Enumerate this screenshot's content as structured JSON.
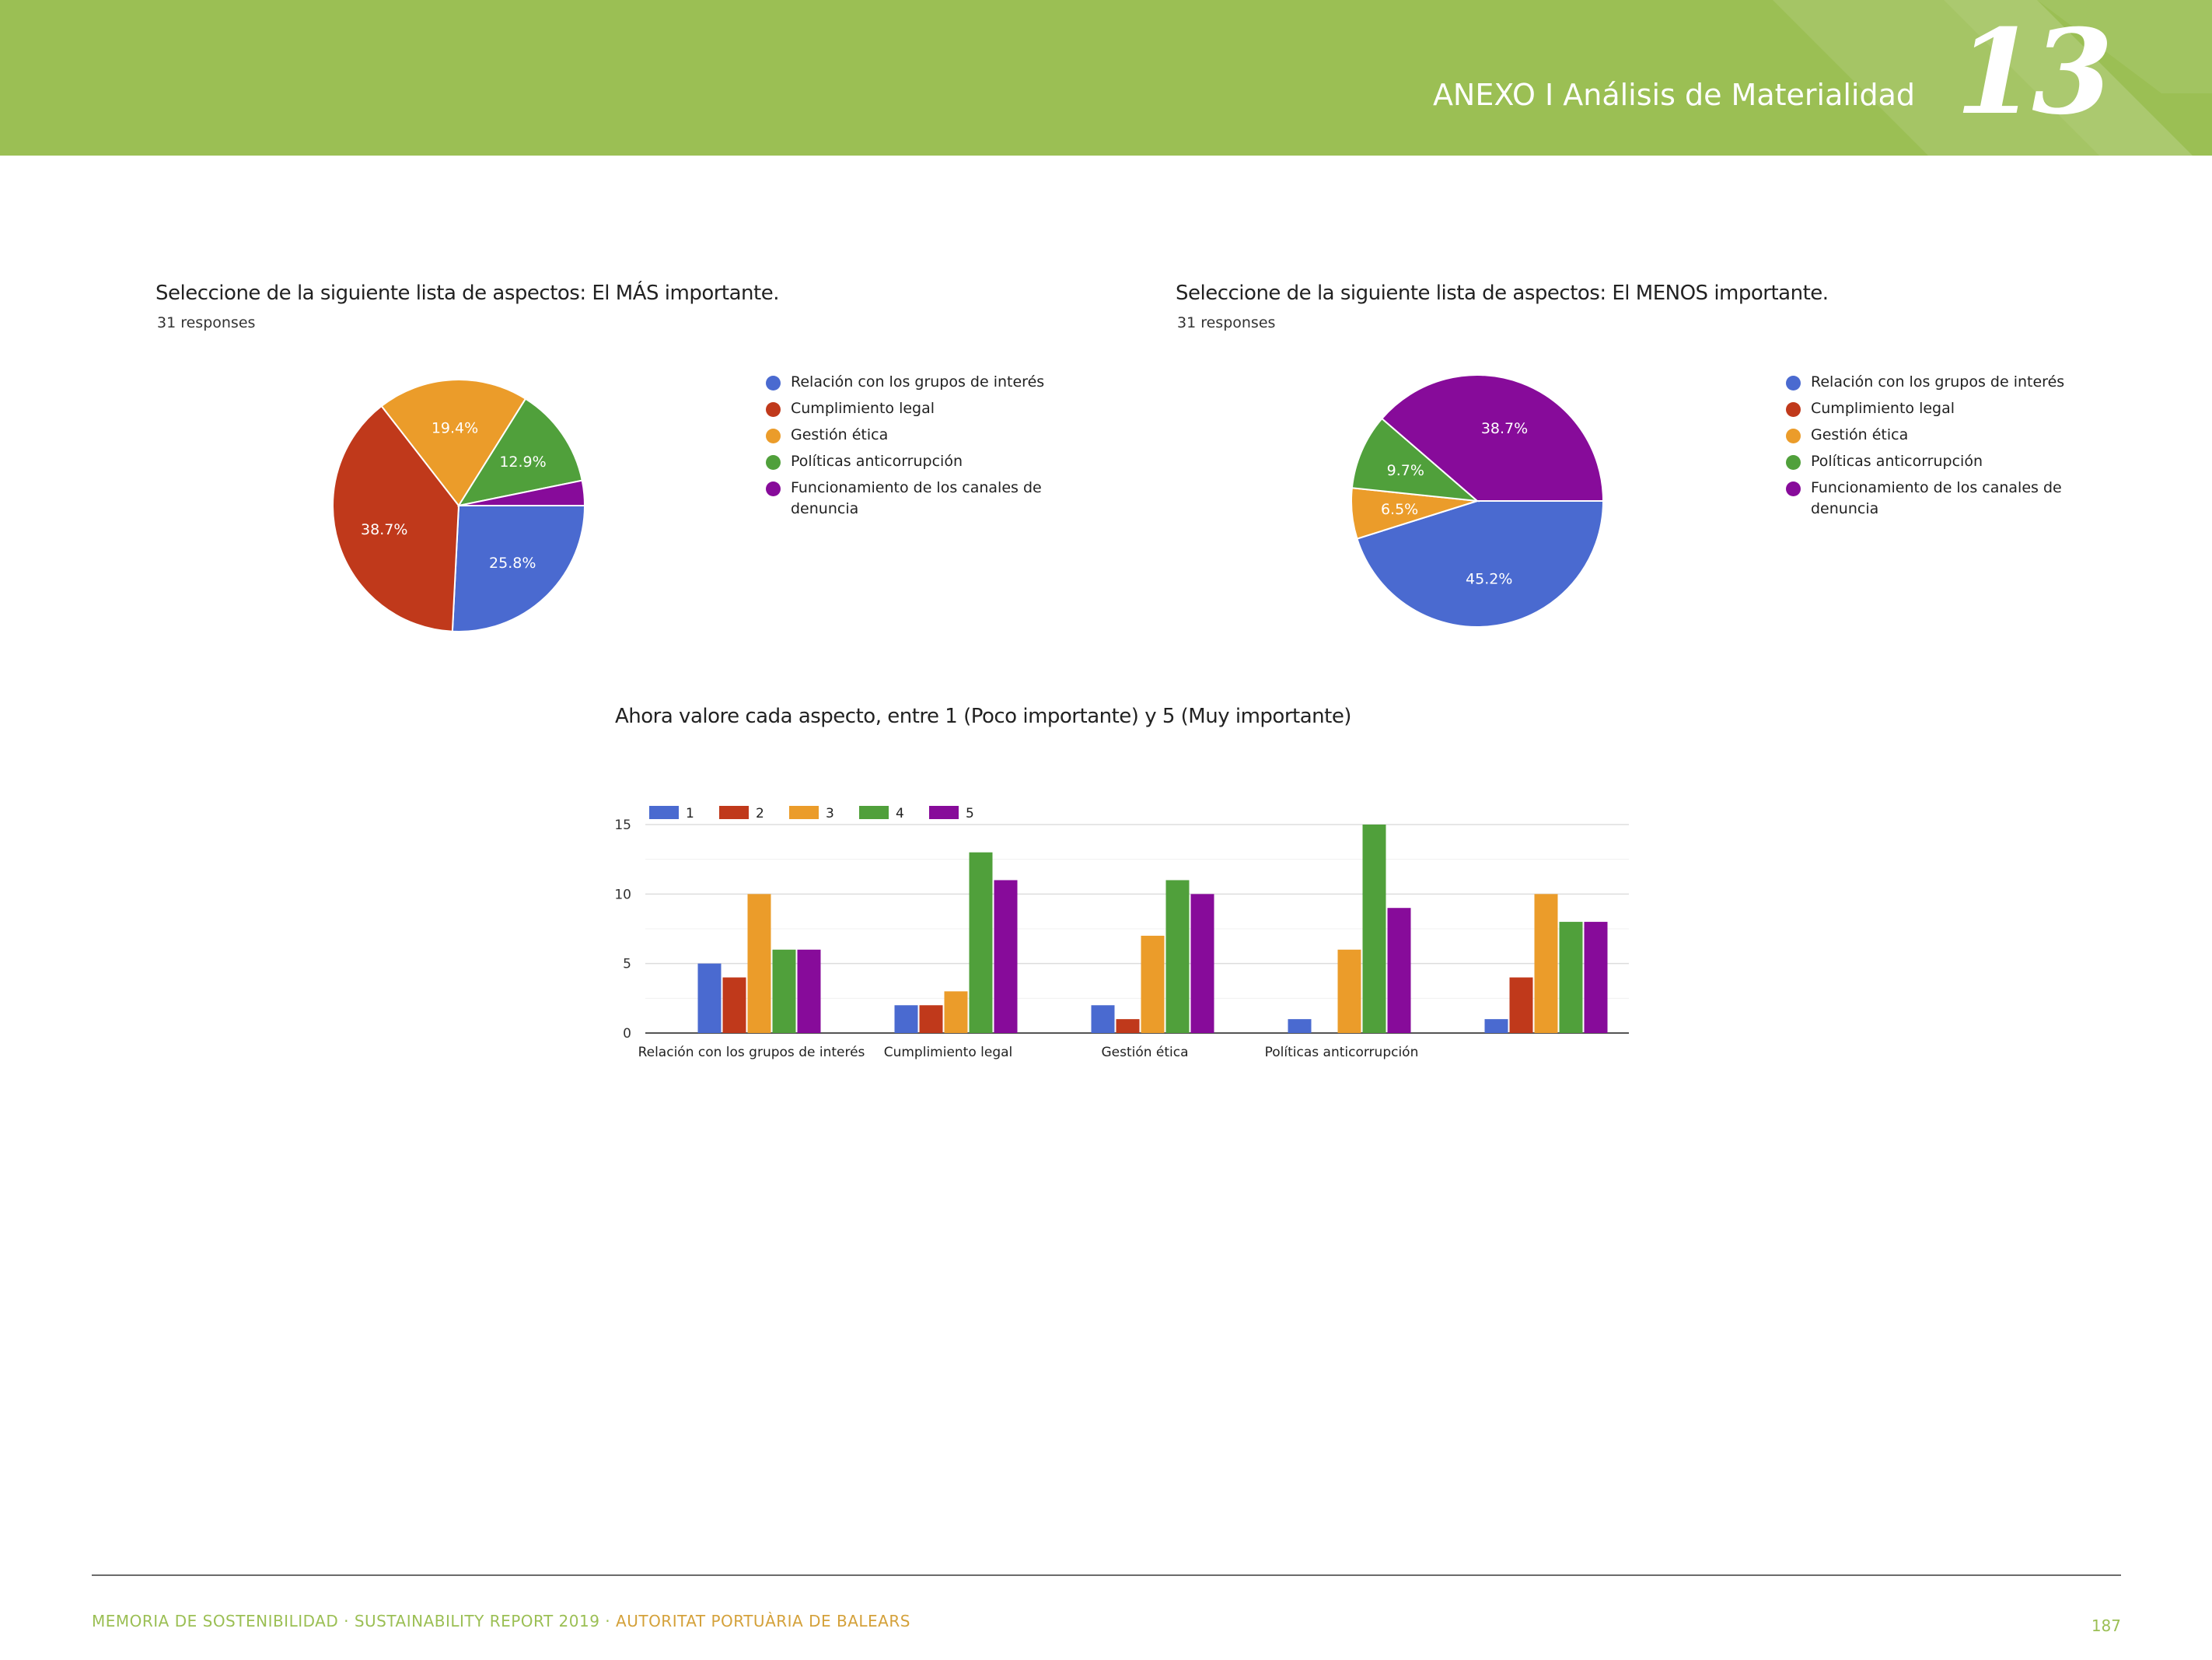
{
  "header": {
    "title": "ANEXO I Análisis de Materialidad",
    "chapter": "13",
    "background": "#9bbf54"
  },
  "legend_categories": [
    "Relación con los grupos de interés",
    "Cumplimiento legal",
    "Gestión ética",
    "Políticas anticorrupción",
    "Funcionamiento de los canales de denuncia"
  ],
  "colors": [
    "#4a6ad0",
    "#c0391b",
    "#eb9c2a",
    "#50a03b",
    "#870b9a"
  ],
  "chart_data": [
    {
      "type": "pie",
      "title": "Seleccione de la siguiente lista de aspectos: El MÁS importante.",
      "subtitle": "31 responses",
      "categories": [
        "Relación con los grupos de interés",
        "Cumplimiento legal",
        "Gestión ética",
        "Políticas anticorrupción",
        "Funcionamiento de los canales de denuncia"
      ],
      "values": [
        25.8,
        38.7,
        19.4,
        12.9,
        3.2
      ],
      "labels": [
        "25.8%",
        "38.7%",
        "19.4%",
        "12.9%",
        ""
      ],
      "legend": "right"
    },
    {
      "type": "pie",
      "title": "Seleccione de la siguiente lista de aspectos: El MENOS importante.",
      "subtitle": "31 responses",
      "categories": [
        "Relación con los grupos de interés",
        "Cumplimiento legal",
        "Gestión ética",
        "Políticas anticorrupción",
        "Funcionamiento de los canales de denuncia"
      ],
      "values": [
        45.2,
        0,
        6.5,
        9.7,
        38.7
      ],
      "labels": [
        "45.2%",
        "",
        "6.5%",
        "9.7%",
        "38.7%"
      ],
      "legend": "right"
    },
    {
      "type": "bar",
      "title": "Ahora valore cada aspecto, entre 1 (Poco importante) y 5 (Muy importante)",
      "categories": [
        "Relación con los grupos de interés",
        "Cumplimiento legal",
        "Gestión ética",
        "Políticas anticorrupción",
        ""
      ],
      "series": [
        {
          "name": "1",
          "values": [
            5,
            2,
            2,
            1,
            1
          ]
        },
        {
          "name": "2",
          "values": [
            4,
            2,
            1,
            0,
            4
          ]
        },
        {
          "name": "3",
          "values": [
            10,
            3,
            7,
            6,
            10
          ]
        },
        {
          "name": "4",
          "values": [
            6,
            13,
            11,
            15,
            8
          ]
        },
        {
          "name": "5",
          "values": [
            6,
            11,
            10,
            9,
            8
          ]
        }
      ],
      "ylim": [
        0,
        15
      ],
      "yticks": [
        0,
        5,
        10,
        15
      ],
      "grid": true,
      "legend": "top-left"
    }
  ],
  "footer": {
    "text": "MEMORIA DE SOSTENIBILIDAD · SUSTAINABILITY REPORT 2019 · ",
    "org": "AUTORITAT PORTUÀRIA DE BALEARS",
    "page": "187"
  }
}
